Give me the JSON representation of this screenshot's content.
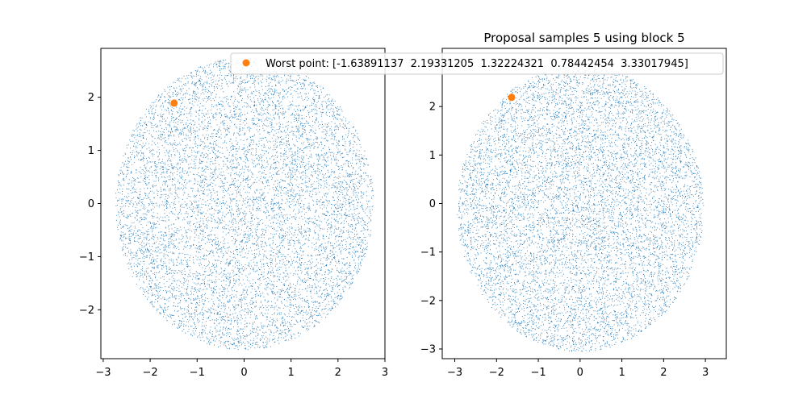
{
  "colors": {
    "samples": "#1f77b4",
    "worst_point": "#ff7f0e",
    "axes": "#000000",
    "legend_border": "#cccccc"
  },
  "chart_data": [
    {
      "type": "scatter",
      "title": "",
      "xlim": [
        -3.05,
        3.0
      ],
      "ylim": [
        -2.92,
        2.92
      ],
      "xticks": [
        -3,
        -2,
        -1,
        0,
        1,
        2,
        3
      ],
      "yticks": [
        -2,
        -1,
        0,
        1,
        2
      ],
      "xtick_labels": [
        "−3",
        "−2",
        "−1",
        "0",
        "1",
        "2",
        "3"
      ],
      "ytick_labels": [
        "−2",
        "−1",
        "0",
        "1",
        "2"
      ],
      "samples": {
        "count": 9000,
        "radius": 2.75,
        "center": [
          0.0,
          0.0
        ],
        "seed": 11
      },
      "worst_point": [
        -1.49,
        1.89
      ],
      "legend": null
    },
    {
      "type": "scatter",
      "title": "Proposal samples 5 using block 5",
      "xlim": [
        -3.3,
        3.5
      ],
      "ylim": [
        -3.2,
        3.2
      ],
      "xticks": [
        -3,
        -2,
        -1,
        0,
        1,
        2,
        3
      ],
      "yticks": [
        -3,
        -2,
        -1,
        0,
        1,
        2
      ],
      "xtick_labels": [
        "−3",
        "−2",
        "−1",
        "0",
        "1",
        "2",
        "3"
      ],
      "ytick_labels": [
        "−3",
        "−2",
        "−1",
        "0",
        "1",
        "2"
      ],
      "samples": {
        "count": 9000,
        "radius": 2.95,
        "center": [
          0.0,
          -0.1
        ],
        "seed": 23
      },
      "worst_point": [
        -1.64,
        2.19
      ],
      "legend": {
        "placement": "top",
        "label": "Worst point: [-1.63891137  2.19331205  1.32224321  0.78442454  3.33017945]"
      }
    }
  ]
}
